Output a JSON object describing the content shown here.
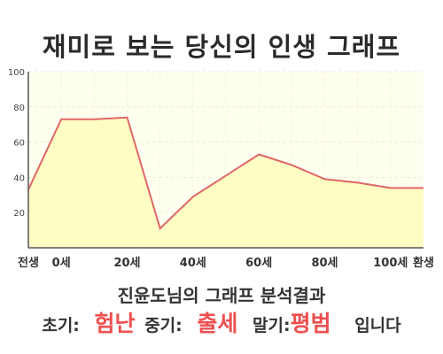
{
  "title": "재미로 보는 당신의 인생 그래프",
  "chart_data": {
    "type": "area",
    "x": [
      "전생",
      "0세",
      "",
      "20세",
      "",
      "40세",
      "",
      "60세",
      "",
      "80세",
      "",
      "100세",
      "환생"
    ],
    "values": [
      33,
      73,
      73,
      74,
      11,
      29,
      41,
      53,
      47,
      39,
      37,
      34,
      34
    ],
    "x_tick_labels": [
      "전생",
      "0세",
      "20세",
      "40세",
      "60세",
      "80세",
      "100세",
      "환생"
    ],
    "y_ticks": [
      "100",
      "80",
      "60",
      "40",
      "20"
    ],
    "ylim": [
      0,
      100
    ],
    "grid": true,
    "line_color": "#e06666",
    "fill_color": "#fefdc4",
    "plot_bg": "#fffff0"
  },
  "summary": {
    "heading": "진윤도님의 그래프 분석결과",
    "early_label": "초기:",
    "early_value": "험난",
    "mid_label": "중기:",
    "mid_value": "출세",
    "late_label": "말기:",
    "late_value": "평범",
    "ending": "입니다"
  },
  "colors": {
    "highlight": "#ef4f4f",
    "text": "#333333"
  }
}
